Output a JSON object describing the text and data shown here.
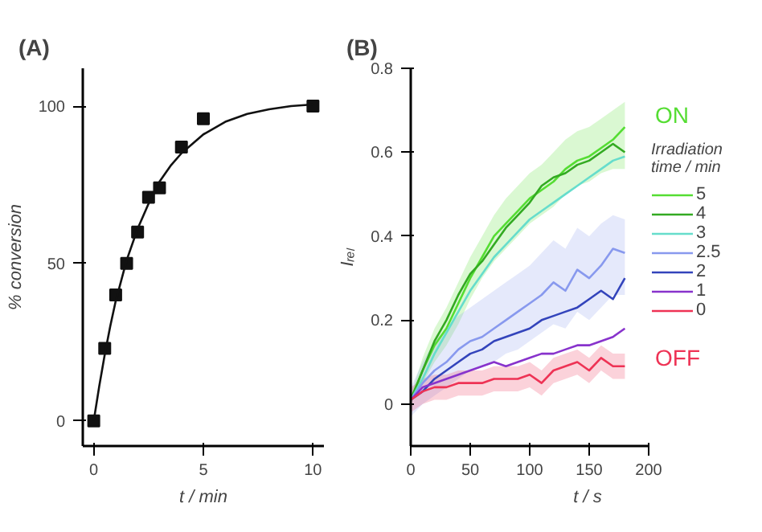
{
  "chart_data": [
    {
      "type": "scatter",
      "title": "(A)",
      "xlabel": "t / min",
      "ylabel": "% conversion",
      "xlim": [
        -0.5,
        10.5
      ],
      "ylim": [
        -8,
        112
      ],
      "xticks": [
        0,
        5,
        10
      ],
      "yticks": [
        0,
        50,
        100
      ],
      "grid": false,
      "legend": false,
      "marker": "square",
      "series": [
        {
          "type": "scatter",
          "color": "#111111",
          "x": [
            0,
            0.5,
            1,
            1.5,
            2,
            2.5,
            3,
            4,
            5,
            10
          ],
          "values": [
            0,
            23,
            40,
            50,
            60,
            71,
            74,
            87,
            96,
            100
          ]
        },
        {
          "type": "line",
          "color": "#111111",
          "marker": "none",
          "x": [
            0,
            0.25,
            0.5,
            0.75,
            1,
            1.5,
            2,
            2.5,
            3,
            3.5,
            4,
            5,
            6,
            7,
            8,
            9,
            10
          ],
          "values": [
            0,
            11,
            21,
            30,
            38,
            51,
            61,
            69,
            76,
            81,
            85,
            91,
            95,
            97.5,
            99,
            100,
            100.5
          ]
        }
      ]
    },
    {
      "type": "line",
      "title": "(B)",
      "xlabel": "t / s",
      "ylabel": "Iᵣₑₗ",
      "xlim": [
        0,
        200
      ],
      "ylim": [
        -0.1,
        0.8
      ],
      "xticks": [
        0,
        50,
        100,
        150,
        200
      ],
      "yticks": [
        0,
        0.2,
        0.4,
        0.6,
        0.8
      ],
      "grid": false,
      "legend": "right",
      "legend_title": "Irradiation time / min",
      "line_style": "solid",
      "x": [
        0,
        10,
        20,
        30,
        40,
        50,
        60,
        70,
        80,
        90,
        100,
        110,
        120,
        130,
        140,
        150,
        160,
        170,
        180
      ],
      "annotations": [
        "ON",
        "OFF"
      ],
      "series": [
        {
          "name": "5",
          "color": "#55dd33",
          "values": [
            0.01,
            0.08,
            0.14,
            0.18,
            0.24,
            0.3,
            0.35,
            0.4,
            0.43,
            0.46,
            0.49,
            0.51,
            0.53,
            0.56,
            0.58,
            0.59,
            0.61,
            0.63,
            0.66
          ],
          "lower": [
            0.0,
            0.05,
            0.1,
            0.14,
            0.19,
            0.25,
            0.3,
            0.34,
            0.37,
            0.4,
            0.43,
            0.45,
            0.47,
            0.5,
            0.52,
            0.53,
            0.55,
            0.56,
            0.56
          ],
          "upper": [
            0.02,
            0.11,
            0.18,
            0.23,
            0.29,
            0.35,
            0.4,
            0.45,
            0.49,
            0.52,
            0.55,
            0.57,
            0.6,
            0.63,
            0.65,
            0.66,
            0.68,
            0.7,
            0.72
          ]
        },
        {
          "name": "4",
          "color": "#33aa22",
          "values": [
            0.01,
            0.08,
            0.15,
            0.2,
            0.26,
            0.31,
            0.34,
            0.38,
            0.42,
            0.45,
            0.48,
            0.52,
            0.54,
            0.55,
            0.57,
            0.58,
            0.6,
            0.62,
            0.6
          ]
        },
        {
          "name": "3",
          "color": "#66ddcc",
          "values": [
            0.01,
            0.06,
            0.12,
            0.17,
            0.22,
            0.27,
            0.31,
            0.35,
            0.38,
            0.41,
            0.44,
            0.46,
            0.48,
            0.5,
            0.52,
            0.54,
            0.56,
            0.58,
            0.59
          ]
        },
        {
          "name": "2.5",
          "color": "#8899ee",
          "values": [
            0.01,
            0.05,
            0.08,
            0.1,
            0.13,
            0.15,
            0.16,
            0.18,
            0.2,
            0.22,
            0.24,
            0.26,
            0.29,
            0.27,
            0.32,
            0.3,
            0.33,
            0.37,
            0.36
          ],
          "lower": [
            -0.03,
            0.0,
            0.02,
            0.04,
            0.06,
            0.08,
            0.09,
            0.1,
            0.12,
            0.13,
            0.15,
            0.17,
            0.19,
            0.18,
            0.22,
            0.2,
            0.23,
            0.26,
            0.26
          ],
          "upper": [
            0.04,
            0.1,
            0.15,
            0.18,
            0.21,
            0.23,
            0.25,
            0.27,
            0.29,
            0.31,
            0.33,
            0.36,
            0.39,
            0.37,
            0.42,
            0.4,
            0.43,
            0.45,
            0.44
          ]
        },
        {
          "name": "2",
          "color": "#3344bb",
          "values": [
            0.01,
            0.03,
            0.06,
            0.08,
            0.1,
            0.12,
            0.13,
            0.15,
            0.16,
            0.17,
            0.18,
            0.2,
            0.21,
            0.22,
            0.23,
            0.25,
            0.27,
            0.25,
            0.3
          ]
        },
        {
          "name": "1",
          "color": "#8833cc",
          "values": [
            0.01,
            0.04,
            0.05,
            0.06,
            0.07,
            0.08,
            0.09,
            0.1,
            0.09,
            0.1,
            0.11,
            0.12,
            0.12,
            0.13,
            0.14,
            0.14,
            0.15,
            0.16,
            0.18
          ]
        },
        {
          "name": "0",
          "color": "#ee3355",
          "values": [
            0.01,
            0.03,
            0.04,
            0.04,
            0.05,
            0.05,
            0.05,
            0.06,
            0.06,
            0.06,
            0.07,
            0.05,
            0.08,
            0.09,
            0.1,
            0.08,
            0.11,
            0.09,
            0.09
          ],
          "lower": [
            -0.02,
            0.0,
            0.01,
            0.01,
            0.02,
            0.02,
            0.02,
            0.03,
            0.03,
            0.03,
            0.04,
            0.02,
            0.05,
            0.06,
            0.07,
            0.05,
            0.08,
            0.06,
            0.06
          ],
          "upper": [
            0.04,
            0.06,
            0.07,
            0.07,
            0.08,
            0.08,
            0.08,
            0.09,
            0.09,
            0.09,
            0.1,
            0.08,
            0.11,
            0.12,
            0.13,
            0.11,
            0.14,
            0.12,
            0.12
          ]
        }
      ]
    }
  ]
}
